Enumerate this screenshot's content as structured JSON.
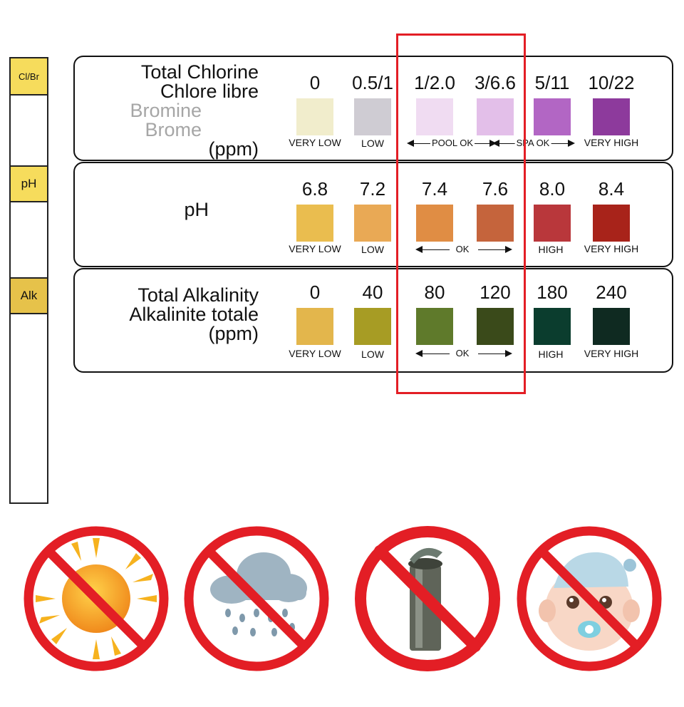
{
  "strip": {
    "pads": [
      "Cl/Br",
      "pH",
      "Alk"
    ]
  },
  "chlorine": {
    "label_lines": [
      "Total Chlorine",
      "Chlore libre"
    ],
    "grey_lines": [
      "Bromine",
      "Brome"
    ],
    "unit": "(ppm)",
    "values": [
      "0",
      "0.5/1",
      "1/2.0",
      "3/6.6",
      "5/11",
      "10/22"
    ],
    "colors": [
      "#f1edcc",
      "#cfccd3",
      "#f0dcf2",
      "#e3bfe9",
      "#b266c4",
      "#8d3a9c"
    ],
    "levels": [
      "VERY LOW",
      "LOW",
      "VERY HIGH"
    ],
    "pool_ok": "POOL OK",
    "spa_ok": "SPA OK"
  },
  "ph": {
    "label": "pH",
    "values": [
      "6.8",
      "7.2",
      "7.4",
      "7.6",
      "8.0",
      "8.4"
    ],
    "colors": [
      "#eabd4f",
      "#e9a955",
      "#e08d44",
      "#c5643c",
      "#b9373b",
      "#a8231a"
    ],
    "levels": [
      "VERY LOW",
      "LOW",
      "HIGH",
      "VERY HIGH"
    ],
    "ok": "OK"
  },
  "alkalinity": {
    "label_lines": [
      "Total Alkalinity",
      "Alkalinite totale"
    ],
    "unit": "(ppm)",
    "values": [
      "0",
      "40",
      "80",
      "120",
      "180",
      "240"
    ],
    "colors": [
      "#e3b64c",
      "#a79c24",
      "#5f7a2b",
      "#3a4a1a",
      "#0b3d2e",
      "#0f2a21"
    ],
    "levels": [
      "VERY LOW",
      "LOW",
      "HIGH",
      "VERY HIGH"
    ],
    "ok": "OK"
  },
  "icons": [
    {
      "name": "no-sun-icon"
    },
    {
      "name": "no-rain-icon"
    },
    {
      "name": "no-container-icon"
    },
    {
      "name": "no-children-icon"
    }
  ],
  "colors": {
    "prohibition_red": "#e31e25",
    "highlight_red": "#e31e25"
  }
}
